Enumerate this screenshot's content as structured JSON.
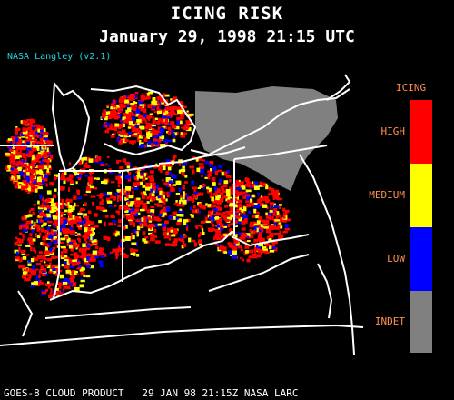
{
  "header": {
    "title": "ICING RISK",
    "datetime": "January 29, 1998 21:15 UTC",
    "credit": "NASA Langley (v2.1)"
  },
  "legend": {
    "title": "ICING",
    "levels": [
      {
        "label": "HIGH",
        "color": "#ff0000"
      },
      {
        "label": "MEDIUM",
        "color": "#ffff00"
      },
      {
        "label": "LOW",
        "color": "#0000ff"
      },
      {
        "label": "INDET",
        "color": "#808080"
      }
    ],
    "label_color": "#ff9050"
  },
  "footer": {
    "text": "GOES-8 CLOUD PRODUCT   29 JAN 98 21:15Z NASA LARC"
  },
  "map": {
    "background": "#000000",
    "boundary_color": "#ffffff"
  }
}
